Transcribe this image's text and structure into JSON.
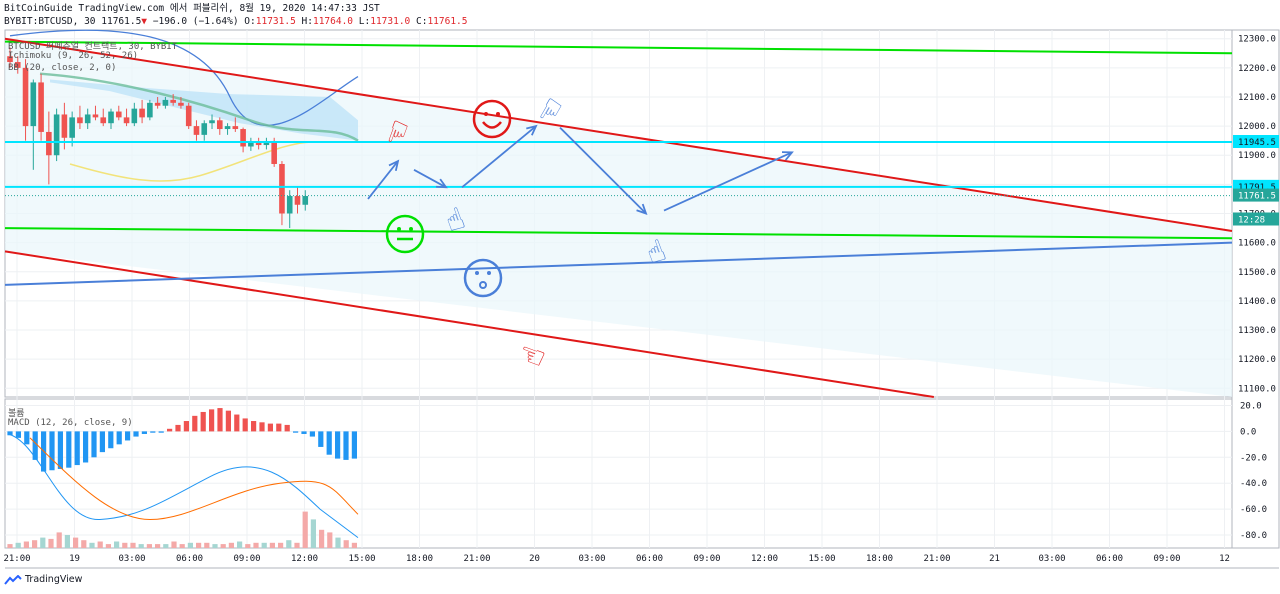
{
  "header": {
    "line1": "BitCoinGuide TradingView.com 에서 퍼블리쉬, 8월 19, 2020 14:47:33 JST",
    "symbol": "BYBIT:BTCUSD, 30",
    "last": "11761.5",
    "arrow": "▼",
    "change": "−196.0 (−1.64%)",
    "o_label": "O:",
    "o": "11731.5",
    "h_label": "H:",
    "h": "11764.0",
    "l_label": "L:",
    "l": "11731.0",
    "c_label": "C:",
    "c": "11761.5"
  },
  "indicators": {
    "main": "BTCUSD 퍼페츄얼 컨트랙트, 30, BYBIT",
    "ichimoku": "Ichimoku (9, 26, 52, 26)",
    "bb": "BB (20, close, 2, 0)",
    "macd_title": "볼륨",
    "macd": "MACD (12, 26, close, 9)"
  },
  "footer": {
    "brand": "TradingView"
  },
  "colors": {
    "bull": "#26a69a",
    "bear": "#ef5350",
    "cyan": "#00e5ff",
    "green": "#00e000",
    "red": "#e01818",
    "blue": "#4a7fd8",
    "cloud": "#bfe3f7",
    "macd_line": "#2196f3",
    "signal_line": "#ff6d00"
  },
  "chart_data": [
    {
      "type": "candlestick",
      "title": "BYBIT:BTCUSD, 30",
      "x_ticks": [
        "21:00",
        "19",
        "03:00",
        "06:00",
        "09:00",
        "12:00",
        "15:00",
        "18:00",
        "21:00",
        "20",
        "03:00",
        "06:00",
        "09:00",
        "12:00",
        "15:00",
        "18:00",
        "21:00",
        "21",
        "03:00",
        "06:00",
        "09:00",
        "12"
      ],
      "y_ticks": [
        12300,
        12200,
        12100,
        12000,
        11900,
        11800,
        11700,
        11600,
        11500,
        11400,
        11300,
        11200,
        11100
      ],
      "ylim": [
        11070,
        12330
      ],
      "price_labels": [
        {
          "text": "11945.5",
          "value": 11945.5,
          "color": "cyan"
        },
        {
          "text": "11791.5",
          "value": 11791.5,
          "color": "cyan"
        },
        {
          "text": "11761.5",
          "value": 11761.5,
          "color": "bull"
        },
        {
          "text": "12:28",
          "value": 11700,
          "color": "bull"
        }
      ],
      "candles": [
        [
          12240,
          12270,
          12200,
          12220
        ],
        [
          12220,
          12240,
          12180,
          12200
        ],
        [
          12200,
          12230,
          11950,
          12000
        ],
        [
          12000,
          12160,
          11850,
          12150
        ],
        [
          12150,
          12180,
          11950,
          11980
        ],
        [
          11980,
          12050,
          11800,
          11900
        ],
        [
          11900,
          12060,
          11880,
          12040
        ],
        [
          12040,
          12080,
          11920,
          11960
        ],
        [
          11960,
          12050,
          11930,
          12030
        ],
        [
          12030,
          12070,
          11990,
          12010
        ],
        [
          12010,
          12060,
          11990,
          12040
        ],
        [
          12040,
          12070,
          12020,
          12030
        ],
        [
          12030,
          12060,
          12000,
          12010
        ],
        [
          12010,
          12060,
          11990,
          12050
        ],
        [
          12050,
          12070,
          12020,
          12030
        ],
        [
          12030,
          12060,
          12000,
          12010
        ],
        [
          12010,
          12080,
          12000,
          12060
        ],
        [
          12060,
          12090,
          12010,
          12030
        ],
        [
          12030,
          12090,
          12020,
          12080
        ],
        [
          12080,
          12100,
          12060,
          12070
        ],
        [
          12070,
          12100,
          12060,
          12090
        ],
        [
          12090,
          12110,
          12070,
          12080
        ],
        [
          12080,
          12100,
          12060,
          12070
        ],
        [
          12070,
          12080,
          11990,
          12000
        ],
        [
          12000,
          12020,
          11950,
          11970
        ],
        [
          11970,
          12020,
          11950,
          12010
        ],
        [
          12010,
          12040,
          11990,
          12020
        ],
        [
          12020,
          12030,
          11970,
          11990
        ],
        [
          11990,
          12010,
          11970,
          12000
        ],
        [
          12000,
          12030,
          11980,
          11990
        ],
        [
          11990,
          11995,
          11910,
          11930
        ],
        [
          11930,
          11960,
          11915,
          11945
        ],
        [
          11945,
          11960,
          11920,
          11935
        ],
        [
          11935,
          11960,
          11920,
          11945
        ],
        [
          11945,
          11960,
          11860,
          11870
        ],
        [
          11870,
          11880,
          11660,
          11700
        ],
        [
          11700,
          11780,
          11650,
          11760
        ],
        [
          11760,
          11790,
          11700,
          11730
        ],
        [
          11730,
          11780,
          11710,
          11760
        ]
      ],
      "trend_lines": [
        {
          "color": "green",
          "from": [
            0,
            12290
          ],
          "to": [
            1,
            12250
          ]
        },
        {
          "color": "green",
          "from": [
            0,
            11650
          ],
          "to": [
            1,
            11615
          ]
        },
        {
          "color": "red",
          "from": [
            0,
            12300
          ],
          "to": [
            1,
            11640
          ]
        },
        {
          "color": "red",
          "from": [
            0,
            11570
          ],
          "to": [
            0.757,
            11070
          ]
        },
        {
          "color": "blue",
          "from": [
            0,
            11455
          ],
          "to": [
            1,
            11600
          ]
        },
        {
          "color": "cyan",
          "from": [
            0,
            11945.5
          ],
          "to": [
            1,
            11945.5
          ]
        },
        {
          "color": "cyan",
          "from": [
            0,
            11791.5
          ],
          "to": [
            1,
            11791.5
          ]
        }
      ]
    },
    {
      "type": "bar",
      "title": "MACD (12, 26, close, 9)",
      "y_ticks": [
        20.0,
        0.0,
        -20.0,
        -40.0,
        -60.0,
        -80.0
      ],
      "ylim": [
        -90,
        25
      ],
      "histogram": [
        -3,
        -5,
        -10,
        -22,
        -31,
        -30,
        -29,
        -28,
        -26,
        -24,
        -20,
        -16,
        -13,
        -10,
        -7,
        -4,
        -2,
        -1,
        -1,
        2,
        5,
        8,
        12,
        15,
        17,
        18,
        16,
        13,
        10,
        8,
        7,
        6,
        6,
        5,
        -1,
        -2,
        -4,
        -12,
        -18,
        -21,
        -22,
        -21
      ],
      "volume": [
        3,
        4,
        5,
        6,
        8,
        7,
        12,
        10,
        8,
        6,
        4,
        5,
        3,
        5,
        4,
        4,
        3,
        3,
        3,
        3,
        5,
        3,
        4,
        4,
        4,
        3,
        3,
        4,
        5,
        3,
        4,
        4,
        4,
        4,
        6,
        4,
        28,
        22,
        14,
        12,
        8,
        6,
        4
      ]
    }
  ]
}
